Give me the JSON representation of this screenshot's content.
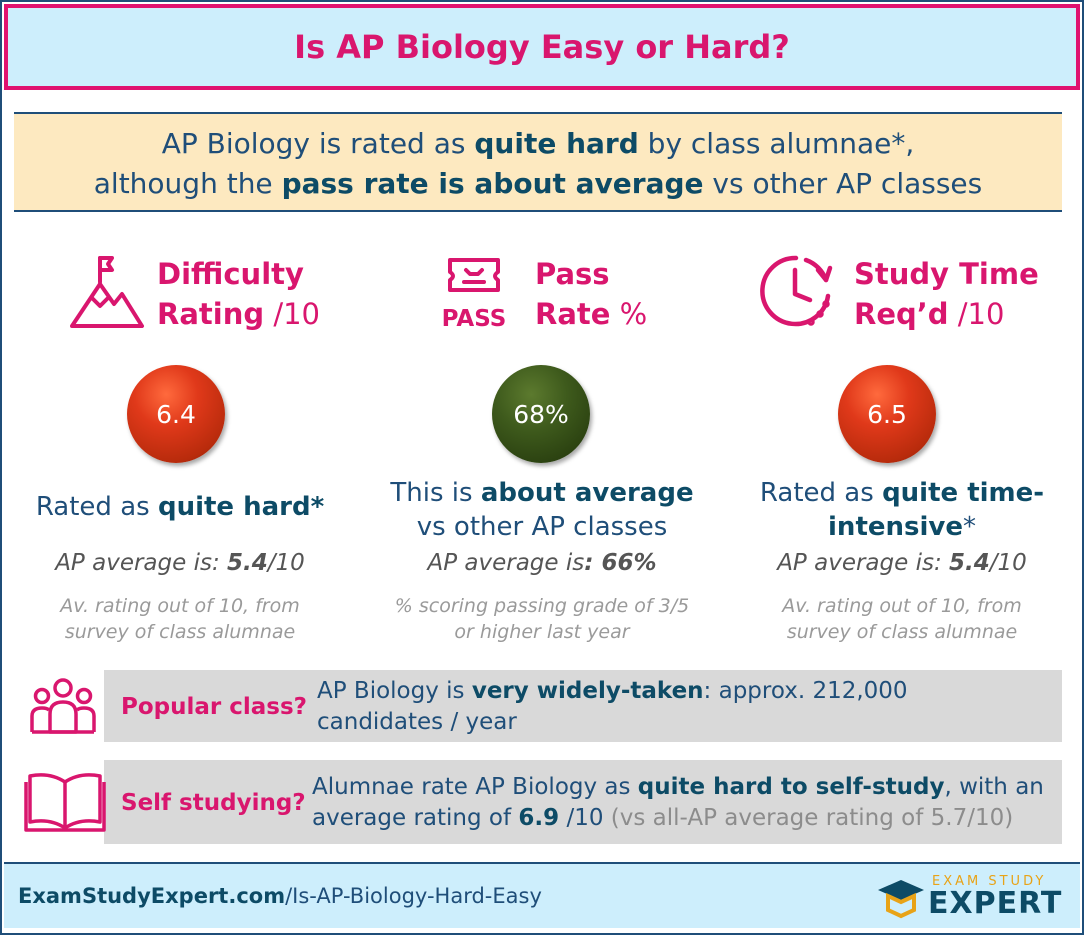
{
  "title": "Is AP Biology Easy or Hard?",
  "summary": {
    "line1_a": "AP Biology is rated as ",
    "line1_b": "quite hard",
    "line1_c": " by class alumnae*,",
    "line2_a": "although the ",
    "line2_b": "pass rate is about average",
    "line2_c": " vs other AP classes"
  },
  "columns": [
    {
      "title_line1": "Difficulty",
      "title_line2_bold": "Rating",
      "title_line2_light": " /10",
      "icon": "mountain-flag-icon",
      "value": "6.4",
      "verdict_a": "Rated as ",
      "verdict_b": "quite hard*",
      "avg_a": "AP average is: ",
      "avg_b": "5.4",
      "avg_c": "/10",
      "note_line1": "Av. rating out of 10, from",
      "note_line2": "survey of class alumnae"
    },
    {
      "title_line1": "Pass",
      "title_line2_bold": "Rate",
      "title_line2_light": " %",
      "icon": "pass-ticket-icon",
      "icon_text": "PASS",
      "value": "68%",
      "verdict_a": "This is ",
      "verdict_b": "about average",
      "verdict_c": "vs other AP classes",
      "avg_a": "AP average is",
      "avg_b": ": 66%",
      "avg_c": "",
      "note_line1": "% scoring passing grade of 3/5",
      "note_line2": "or higher last year"
    },
    {
      "title_line1": "Study Time",
      "title_line2_bold": "Req’d",
      "title_line2_light": " /10",
      "icon": "clock-arrow-icon",
      "value": "6.5",
      "verdict_a": "Rated as ",
      "verdict_b": "quite time-",
      "verdict_c": "intensive",
      "verdict_d": "*",
      "avg_a": "AP average is: ",
      "avg_b": "5.4",
      "avg_c": "/10",
      "note_line1": "Av. rating out of 10, from",
      "note_line2": "survey of class alumnae"
    }
  ],
  "popular": {
    "icon": "people-group-icon",
    "label": "Popular class?",
    "text_a": "AP Biology is ",
    "text_b": "very widely-taken",
    "text_c": ": approx. 212,000",
    "text_d": "candidates / year"
  },
  "self_study": {
    "icon": "open-book-icon",
    "label": "Self studying?",
    "text_a": "Alumnae rate AP Biology as ",
    "text_b": "quite hard to self-study",
    "text_c": ", with an",
    "text_d": "average rating of ",
    "text_e": "6.9",
    "text_f": " /10 ",
    "text_g": "(vs all-AP average rating of 5.7/10)"
  },
  "footer": {
    "url_bold": "ExamStudyExpert.com",
    "url_rest": "/Is-AP-Biology-Hard-Easy",
    "logo_small": "EXAM STUDY",
    "logo_big": "EXPERT"
  },
  "colors": {
    "accent_pink": "#d9166e",
    "navy": "#1f4e79",
    "bubble_red": "#c9300f",
    "bubble_green": "#3e5a1c"
  }
}
